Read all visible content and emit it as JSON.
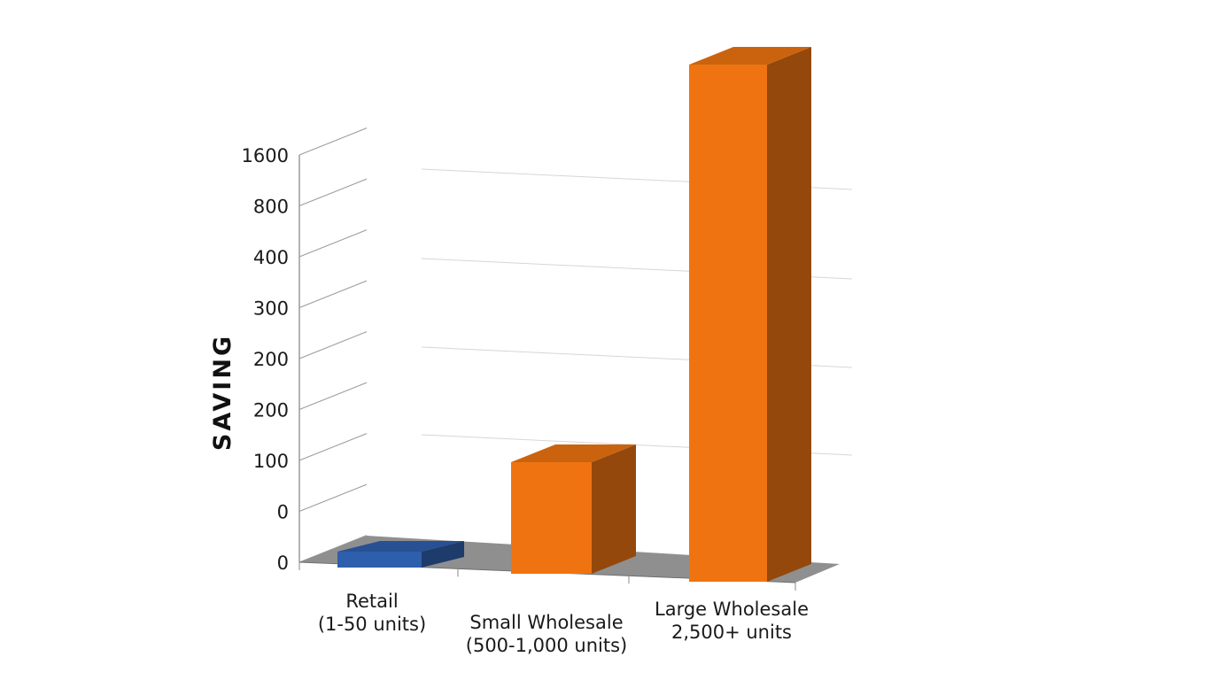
{
  "chart_data": {
    "type": "bar",
    "style": "3d",
    "ylabel": "SAVING",
    "xlabel": "",
    "y_tick_labels": [
      "0",
      "0",
      "100",
      "200",
      "200",
      "300",
      "400",
      "800",
      "1600"
    ],
    "categories": [
      {
        "lines": [
          "Retail",
          "(1-50 units)"
        ]
      },
      {
        "lines": [
          "Small Wholesale",
          "(500-1,000 units)"
        ]
      },
      {
        "lines": [
          "Large Wholesale",
          "2,500+ units"
        ]
      }
    ],
    "values": [
      0,
      100,
      1700
    ],
    "colors": [
      "#2e5fad",
      "#ef7411",
      "#ef7411"
    ],
    "grid": true
  }
}
